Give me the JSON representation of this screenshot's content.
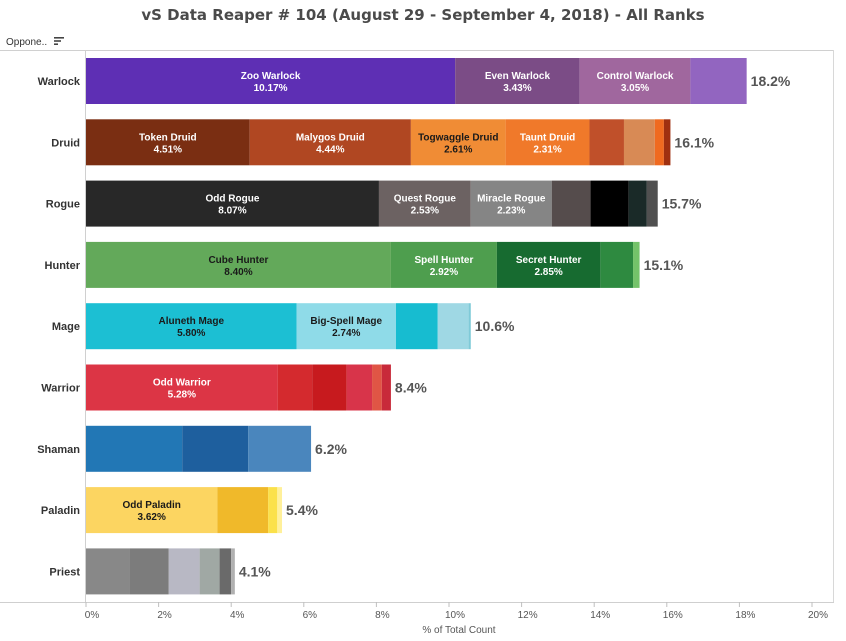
{
  "header": {
    "column_label": "Oppone..",
    "sort_icon": "sort-descending-icon"
  },
  "chart_data": {
    "type": "bar",
    "orientation": "horizontal",
    "stacked": true,
    "title": "vS Data Reaper # 104 (August 29 - September 4, 2018) - All Ranks",
    "xlabel": "% of Total Count",
    "ylabel": "",
    "xlim": [
      0,
      20
    ],
    "xticks": [
      "0%",
      "2%",
      "4%",
      "6%",
      "8%",
      "10%",
      "12%",
      "14%",
      "16%",
      "18%",
      "20%"
    ],
    "grid": false,
    "categories": [
      {
        "name": "Warlock",
        "total": 18.2,
        "total_label": "18.2%",
        "segments": [
          {
            "name": "Zoo Warlock",
            "value": 10.17,
            "label": "10.17%",
            "color": "#5e2fb4",
            "text_color": "#ffffff"
          },
          {
            "name": "Even Warlock",
            "value": 3.43,
            "label": "3.43%",
            "color": "#7b4c86",
            "text_color": "#ffffff"
          },
          {
            "name": "Control Warlock",
            "value": 3.05,
            "label": "3.05%",
            "color": "#a0679e",
            "text_color": "#ffffff"
          },
          {
            "name": "",
            "value": 1.55,
            "label": "",
            "color": "#9265c0",
            "text_color": "#ffffff"
          }
        ]
      },
      {
        "name": "Druid",
        "total": 16.1,
        "total_label": "16.1%",
        "segments": [
          {
            "name": "Token Druid",
            "value": 4.51,
            "label": "4.51%",
            "color": "#7a2e12",
            "text_color": "#ffffff"
          },
          {
            "name": "Malygos Druid",
            "value": 4.44,
            "label": "4.44%",
            "color": "#b04722",
            "text_color": "#ffffff"
          },
          {
            "name": "Togwaggle Druid",
            "value": 2.61,
            "label": "2.61%",
            "color": "#f08c35",
            "text_color": "#1a1a1a"
          },
          {
            "name": "Taunt Druid",
            "value": 2.31,
            "label": "2.31%",
            "color": "#f0792a",
            "text_color": "#ffffff"
          },
          {
            "name": "",
            "value": 0.95,
            "label": "",
            "color": "#c0502a",
            "text_color": "#ffffff"
          },
          {
            "name": "",
            "value": 0.85,
            "label": "",
            "color": "#d88a55",
            "text_color": "#ffffff"
          },
          {
            "name": "",
            "value": 0.25,
            "label": "",
            "color": "#f06a20",
            "text_color": "#ffffff"
          },
          {
            "name": "",
            "value": 0.18,
            "label": "",
            "color": "#a03010",
            "text_color": "#ffffff"
          }
        ]
      },
      {
        "name": "Rogue",
        "total": 15.7,
        "total_label": "15.7%",
        "segments": [
          {
            "name": "Odd Rogue",
            "value": 8.07,
            "label": "8.07%",
            "color": "#282828",
            "text_color": "#ffffff"
          },
          {
            "name": "Quest Rogue",
            "value": 2.53,
            "label": "2.53%",
            "color": "#6c6262",
            "text_color": "#ffffff"
          },
          {
            "name": "Miracle Rogue",
            "value": 2.23,
            "label": "2.23%",
            "color": "#858585",
            "text_color": "#ffffff"
          },
          {
            "name": "",
            "value": 1.07,
            "label": "",
            "color": "#554c4c",
            "text_color": "#ffffff"
          },
          {
            "name": "",
            "value": 1.05,
            "label": "",
            "color": "#000000",
            "text_color": "#ffffff"
          },
          {
            "name": "",
            "value": 0.5,
            "label": "",
            "color": "#1a2a28",
            "text_color": "#ffffff"
          },
          {
            "name": "",
            "value": 0.3,
            "label": "",
            "color": "#505050",
            "text_color": "#ffffff"
          }
        ]
      },
      {
        "name": "Hunter",
        "total": 15.1,
        "total_label": "15.1%",
        "segments": [
          {
            "name": "Cube Hunter",
            "value": 8.4,
            "label": "8.40%",
            "color": "#63a95a",
            "text_color": "#1a1a1a"
          },
          {
            "name": "Spell Hunter",
            "value": 2.92,
            "label": "2.92%",
            "color": "#4e9e4e",
            "text_color": "#ffffff"
          },
          {
            "name": "Secret Hunter",
            "value": 2.85,
            "label": "2.85%",
            "color": "#176b30",
            "text_color": "#ffffff"
          },
          {
            "name": "",
            "value": 0.9,
            "label": "",
            "color": "#2e8a40",
            "text_color": "#ffffff"
          },
          {
            "name": "",
            "value": 0.18,
            "label": "",
            "color": "#74c36a",
            "text_color": "#ffffff"
          }
        ]
      },
      {
        "name": "Mage",
        "total": 10.6,
        "total_label": "10.6%",
        "segments": [
          {
            "name": "Aluneth Mage",
            "value": 5.8,
            "label": "5.80%",
            "color": "#1cbfd3",
            "text_color": "#1a1a1a"
          },
          {
            "name": "Big-Spell Mage",
            "value": 2.74,
            "label": "2.74%",
            "color": "#8fdbe8",
            "text_color": "#1a1a1a"
          },
          {
            "name": "",
            "value": 1.15,
            "label": "",
            "color": "#17bcd0",
            "text_color": "#ffffff"
          },
          {
            "name": "",
            "value": 0.85,
            "label": "",
            "color": "#9fd8e4",
            "text_color": "#ffffff"
          },
          {
            "name": "",
            "value": 0.06,
            "label": "",
            "color": "#7fcad8",
            "text_color": "#ffffff"
          }
        ]
      },
      {
        "name": "Warrior",
        "total": 8.4,
        "total_label": "8.4%",
        "segments": [
          {
            "name": "Odd Warrior",
            "value": 5.28,
            "label": "5.28%",
            "color": "#dc3545",
            "text_color": "#ffffff"
          },
          {
            "name": "",
            "value": 0.95,
            "label": "",
            "color": "#d42a2e",
            "text_color": "#ffffff"
          },
          {
            "name": "",
            "value": 0.95,
            "label": "",
            "color": "#c71a1e",
            "text_color": "#ffffff"
          },
          {
            "name": "",
            "value": 0.7,
            "label": "",
            "color": "#d8344a",
            "text_color": "#ffffff"
          },
          {
            "name": "",
            "value": 0.27,
            "label": "",
            "color": "#e05545",
            "text_color": "#ffffff"
          },
          {
            "name": "",
            "value": 0.25,
            "label": "",
            "color": "#c82a3a",
            "text_color": "#ffffff"
          }
        ]
      },
      {
        "name": "Shaman",
        "total": 6.2,
        "total_label": "6.2%",
        "segments": [
          {
            "name": "",
            "value": 2.65,
            "label": "",
            "color": "#2277b5",
            "text_color": "#ffffff"
          },
          {
            "name": "",
            "value": 1.82,
            "label": "",
            "color": "#1e5f9e",
            "text_color": "#ffffff"
          },
          {
            "name": "",
            "value": 1.73,
            "label": "",
            "color": "#4a86bd",
            "text_color": "#ffffff"
          }
        ]
      },
      {
        "name": "Paladin",
        "total": 5.4,
        "total_label": "5.4%",
        "segments": [
          {
            "name": "Odd Paladin",
            "value": 3.62,
            "label": "3.62%",
            "color": "#fcd561",
            "text_color": "#1a1a1a"
          },
          {
            "name": "",
            "value": 1.4,
            "label": "",
            "color": "#f0b92a",
            "text_color": "#ffffff"
          },
          {
            "name": "",
            "value": 0.25,
            "label": "",
            "color": "#fbe14a",
            "text_color": "#ffffff"
          },
          {
            "name": "",
            "value": 0.13,
            "label": "",
            "color": "#fff09a",
            "text_color": "#ffffff"
          }
        ]
      },
      {
        "name": "Priest",
        "total": 4.1,
        "total_label": "4.1%",
        "segments": [
          {
            "name": "",
            "value": 1.2,
            "label": "",
            "color": "#888888",
            "text_color": "#ffffff"
          },
          {
            "name": "",
            "value": 1.08,
            "label": "",
            "color": "#7c7c7c",
            "text_color": "#ffffff"
          },
          {
            "name": "",
            "value": 0.85,
            "label": "",
            "color": "#b8b8c4",
            "text_color": "#ffffff"
          },
          {
            "name": "",
            "value": 0.55,
            "label": "",
            "color": "#a0a8a4",
            "text_color": "#ffffff"
          },
          {
            "name": "",
            "value": 0.32,
            "label": "",
            "color": "#6a6a6a",
            "text_color": "#ffffff"
          },
          {
            "name": "",
            "value": 0.1,
            "label": "",
            "color": "#b0b0b0",
            "text_color": "#ffffff"
          }
        ]
      }
    ]
  }
}
